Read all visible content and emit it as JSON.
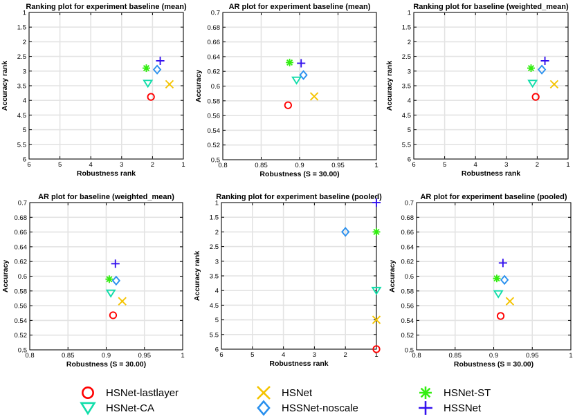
{
  "markers": {
    "HSNet-lastlayer": {
      "shape": "circle",
      "color": "#ff0000"
    },
    "HSNet": {
      "shape": "x",
      "color": "#f5c400"
    },
    "HSNet-ST": {
      "shape": "asterisk",
      "color": "#33ee11"
    },
    "HSNet-CA": {
      "shape": "triangle",
      "color": "#11ddaa"
    },
    "HSSNet-noscale": {
      "shape": "diamond",
      "color": "#2a90ee"
    },
    "HSSNet": {
      "shape": "plus",
      "color": "#3311ee"
    }
  },
  "legend": {
    "entries": [
      "HSNet-lastlayer",
      "HSNet",
      "HSNet-ST",
      "HSNet-CA",
      "HSSNet-noscale",
      "HSSNet"
    ]
  },
  "chart_data": [
    {
      "type": "scatter",
      "title": "Ranking plot for experiment baseline (mean)",
      "xlabel": "Robustness rank",
      "ylabel": "Accuracy rank",
      "xlim": [
        6,
        1
      ],
      "ylim": [
        6,
        1
      ],
      "x_reversed": true,
      "y_reversed": true,
      "xticks": [
        6,
        5,
        4,
        3,
        2,
        1
      ],
      "yticks": [
        1,
        1.5,
        2,
        2.5,
        3,
        3.5,
        4,
        4.5,
        5,
        5.5,
        6
      ],
      "xtick_labels": [
        "6",
        "5",
        "4",
        "3",
        "2",
        "1"
      ],
      "ytick_labels": [
        "1",
        "1.5",
        "2",
        "2.5",
        "3",
        "3.5",
        "4",
        "4.5",
        "5",
        "5.5",
        "6"
      ],
      "grid": true,
      "points": [
        {
          "series": "HSNet-lastlayer",
          "x": 2.05,
          "y": 3.88
        },
        {
          "series": "HSNet",
          "x": 1.45,
          "y": 3.45
        },
        {
          "series": "HSNet-ST",
          "x": 2.2,
          "y": 2.9
        },
        {
          "series": "HSNet-CA",
          "x": 2.15,
          "y": 3.42
        },
        {
          "series": "HSSNet-noscale",
          "x": 1.85,
          "y": 2.95
        },
        {
          "series": "HSSNet",
          "x": 1.75,
          "y": 2.65
        }
      ]
    },
    {
      "type": "scatter",
      "title": "AR plot for experiment baseline (mean)",
      "xlabel": "Robustness (S = 30.00)",
      "ylabel": "Accuracy",
      "xlim": [
        0.8,
        1
      ],
      "ylim": [
        0.5,
        0.7
      ],
      "xticks": [
        0.8,
        0.85,
        0.9,
        0.95,
        1
      ],
      "yticks": [
        0.5,
        0.52,
        0.54,
        0.56,
        0.58,
        0.6,
        0.62,
        0.64,
        0.66,
        0.68,
        0.7
      ],
      "xtick_labels": [
        "0.8",
        "0.85",
        "0.9",
        "0.95",
        "1"
      ],
      "ytick_labels": [
        "0.5",
        "0.52",
        "0.54",
        "0.56",
        "0.58",
        "0.6",
        "0.62",
        "0.64",
        "0.66",
        "0.68",
        "0.7"
      ],
      "grid": true,
      "points": [
        {
          "series": "HSNet-lastlayer",
          "x": 0.885,
          "y": 0.574
        },
        {
          "series": "HSNet",
          "x": 0.919,
          "y": 0.586
        },
        {
          "series": "HSNet-ST",
          "x": 0.887,
          "y": 0.632
        },
        {
          "series": "HSNet-CA",
          "x": 0.896,
          "y": 0.608
        },
        {
          "series": "HSSNet-noscale",
          "x": 0.905,
          "y": 0.615
        },
        {
          "series": "HSSNet",
          "x": 0.902,
          "y": 0.631
        }
      ]
    },
    {
      "type": "scatter",
      "title": "Ranking plot for baseline (weighted_mean)",
      "xlabel": "Robustness rank",
      "ylabel": "Accuracy rank",
      "xlim": [
        6,
        1
      ],
      "ylim": [
        6,
        1
      ],
      "x_reversed": true,
      "y_reversed": true,
      "xticks": [
        6,
        5,
        4,
        3,
        2,
        1
      ],
      "yticks": [
        1,
        1.5,
        2,
        2.5,
        3,
        3.5,
        4,
        4.5,
        5,
        5.5,
        6
      ],
      "xtick_labels": [
        "6",
        "5",
        "4",
        "3",
        "2",
        "1"
      ],
      "ytick_labels": [
        "1",
        "1.5",
        "2",
        "2.5",
        "3",
        "3.5",
        "4",
        "4.5",
        "5",
        "5.5",
        "6"
      ],
      "grid": true,
      "points": [
        {
          "series": "HSNet-lastlayer",
          "x": 2.05,
          "y": 3.88
        },
        {
          "series": "HSNet",
          "x": 1.45,
          "y": 3.45
        },
        {
          "series": "HSNet-ST",
          "x": 2.2,
          "y": 2.9
        },
        {
          "series": "HSNet-CA",
          "x": 2.15,
          "y": 3.42
        },
        {
          "series": "HSSNet-noscale",
          "x": 1.85,
          "y": 2.95
        },
        {
          "series": "HSSNet",
          "x": 1.75,
          "y": 2.65
        }
      ]
    },
    {
      "type": "scatter",
      "title": "AR plot for baseline (weighted_mean)",
      "xlabel": "Robustness (S = 30.00)",
      "ylabel": "Accuracy",
      "xlim": [
        0.8,
        1
      ],
      "ylim": [
        0.5,
        0.7
      ],
      "xticks": [
        0.8,
        0.85,
        0.9,
        0.95,
        1
      ],
      "yticks": [
        0.5,
        0.52,
        0.54,
        0.56,
        0.58,
        0.6,
        0.62,
        0.64,
        0.66,
        0.68,
        0.7
      ],
      "xtick_labels": [
        "0.8",
        "0.85",
        "0.9",
        "0.95",
        "1"
      ],
      "ytick_labels": [
        "0.5",
        "0.52",
        "0.54",
        "0.56",
        "0.58",
        "0.6",
        "0.62",
        "0.64",
        "0.66",
        "0.68",
        "0.7"
      ],
      "grid": true,
      "points": [
        {
          "series": "HSNet-lastlayer",
          "x": 0.909,
          "y": 0.547
        },
        {
          "series": "HSNet",
          "x": 0.921,
          "y": 0.566
        },
        {
          "series": "HSNet-ST",
          "x": 0.904,
          "y": 0.596
        },
        {
          "series": "HSNet-CA",
          "x": 0.906,
          "y": 0.577
        },
        {
          "series": "HSSNet-noscale",
          "x": 0.913,
          "y": 0.594
        },
        {
          "series": "HSSNet",
          "x": 0.912,
          "y": 0.617
        }
      ]
    },
    {
      "type": "scatter",
      "title": "Ranking plot for experiment baseline (pooled)",
      "xlabel": "Robustness rank",
      "ylabel": "Accuracy rank",
      "xlim": [
        6,
        1
      ],
      "ylim": [
        6,
        1
      ],
      "x_reversed": true,
      "y_reversed": true,
      "xticks": [
        6,
        5,
        4,
        3,
        2,
        1
      ],
      "yticks": [
        1,
        1.5,
        2,
        2.5,
        3,
        3.5,
        4,
        4.5,
        5,
        5.5,
        6
      ],
      "xtick_labels": [
        "6",
        "5",
        "4",
        "3",
        "2",
        "1"
      ],
      "ytick_labels": [
        "1",
        "1.5",
        "2",
        "2.5",
        "3",
        "3.5",
        "4",
        "4.5",
        "5",
        "5.5",
        "6"
      ],
      "grid": true,
      "points": [
        {
          "series": "HSNet-lastlayer",
          "x": 1,
          "y": 6
        },
        {
          "series": "HSNet",
          "x": 1,
          "y": 5
        },
        {
          "series": "HSNet-ST",
          "x": 1,
          "y": 2
        },
        {
          "series": "HSNet-CA",
          "x": 1,
          "y": 4
        },
        {
          "series": "HSSNet-noscale",
          "x": 2,
          "y": 2
        },
        {
          "series": "HSSNet",
          "x": 1,
          "y": 1
        }
      ]
    },
    {
      "type": "scatter",
      "title": "AR plot for experiment baseline (pooled)",
      "xlabel": "Robustness (S = 30.00)",
      "ylabel": "Accuracy",
      "xlim": [
        0.8,
        1
      ],
      "ylim": [
        0.5,
        0.7
      ],
      "xticks": [
        0.8,
        0.85,
        0.9,
        0.95,
        1
      ],
      "yticks": [
        0.5,
        0.52,
        0.54,
        0.56,
        0.58,
        0.6,
        0.62,
        0.64,
        0.66,
        0.68,
        0.7
      ],
      "xtick_labels": [
        "0.8",
        "0.85",
        "0.9",
        "0.95",
        "1"
      ],
      "ytick_labels": [
        "0.5",
        "0.52",
        "0.54",
        "0.56",
        "0.58",
        "0.6",
        "0.62",
        "0.64",
        "0.66",
        "0.68",
        "0.7"
      ],
      "grid": true,
      "points": [
        {
          "series": "HSNet-lastlayer",
          "x": 0.909,
          "y": 0.546
        },
        {
          "series": "HSNet",
          "x": 0.921,
          "y": 0.566
        },
        {
          "series": "HSNet-ST",
          "x": 0.904,
          "y": 0.597
        },
        {
          "series": "HSNet-CA",
          "x": 0.906,
          "y": 0.576
        },
        {
          "series": "HSSNet-noscale",
          "x": 0.914,
          "y": 0.595
        },
        {
          "series": "HSSNet",
          "x": 0.912,
          "y": 0.618
        }
      ]
    }
  ]
}
